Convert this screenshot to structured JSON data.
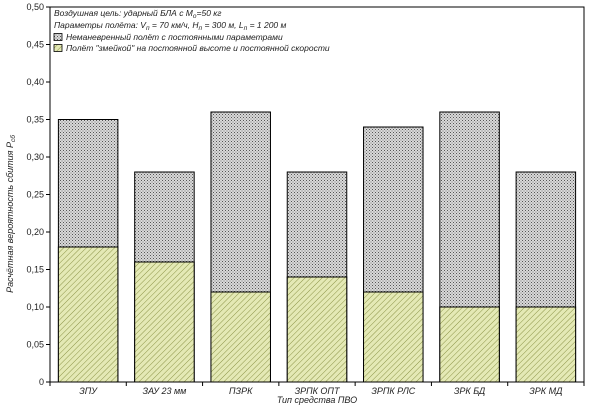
{
  "chart_data": {
    "type": "bar",
    "annotation": {
      "line1": "Воздушная цель: ударный БЛА с M",
      "line1_sub": "о",
      "line1_end": "=50 кг",
      "line2_parts": [
        {
          "text": "Параметры полёта: V",
          "sub": false
        },
        {
          "text": "п",
          "sub": true
        },
        {
          "text": " = 70 км/ч, H",
          "sub": false
        },
        {
          "text": "п",
          "sub": true
        },
        {
          "text": " = 300 м, L",
          "sub": false
        },
        {
          "text": "п",
          "sub": true
        },
        {
          "text": " = 1 200 м",
          "sub": false
        }
      ]
    },
    "categories": [
      "ЗПУ",
      "ЗАУ 23 мм",
      "ПЗРК",
      "ЗРПК ОПТ",
      "ЗРПК РЛС",
      "ЗРК БД",
      "ЗРК МД"
    ],
    "series": [
      {
        "name": "Неманевренный полёт с постоянными параметрами",
        "values": [
          0.35,
          0.28,
          0.36,
          0.28,
          0.34,
          0.36,
          0.28
        ],
        "color": "#c9c9c9"
      },
      {
        "name": "Полёт \"змейкой\" на постоянной высоте и постоянной скорости",
        "values": [
          0.18,
          0.16,
          0.12,
          0.14,
          0.12,
          0.1,
          0.1
        ],
        "color": "#e6eab8"
      }
    ],
    "xlabel": "Тип средства ПВО",
    "ylabel_main": "Расчётная вероятность сбития P",
    "ylabel_sub": "сб",
    "ylim": [
      0,
      0.5
    ],
    "yticks": [
      "0",
      "0,05",
      "0,10",
      "0,15",
      "0,20",
      "0,25",
      "0,30",
      "0,35",
      "0,40",
      "0,45",
      "0,50"
    ],
    "grid": false,
    "legend_position": "top-left"
  }
}
